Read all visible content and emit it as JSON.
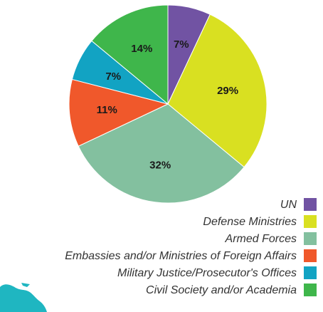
{
  "chart_data": {
    "type": "pie",
    "title": "",
    "slices": [
      {
        "label": "UN",
        "value": 7,
        "display": "7%",
        "color": "#7153a3"
      },
      {
        "label": "Defense Ministries",
        "value": 29,
        "display": "29%",
        "color": "#d9e021"
      },
      {
        "label": "Armed Forces",
        "value": 32,
        "display": "32%",
        "color": "#83c09f"
      },
      {
        "label": "Embassies and/or Ministries of Foreign Affairs",
        "value": 11,
        "display": "11%",
        "color": "#f0582b"
      },
      {
        "label": "Military Justice/Prosecutor's Offices",
        "value": 7,
        "display": "7%",
        "color": "#12a3c3"
      },
      {
        "label": "Civil Society and/or Academia",
        "value": 14,
        "display": "14%",
        "color": "#3fb64b"
      }
    ],
    "legend_position": "bottom-right",
    "start_angle": "top, clockwise"
  }
}
